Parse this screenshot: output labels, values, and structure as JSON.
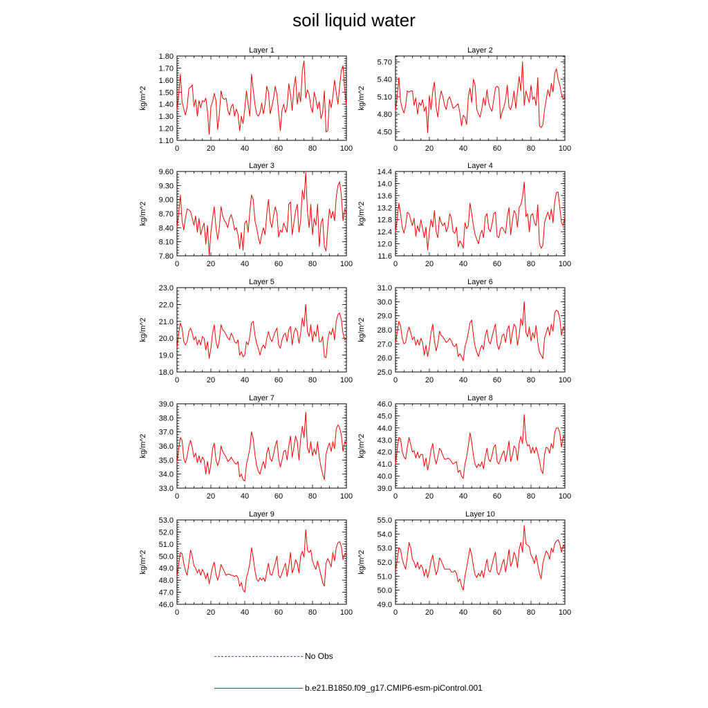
{
  "title": "soil liquid water",
  "legend": [
    {
      "label": "No Obs",
      "color": "#3a55c8",
      "dash": true
    },
    {
      "label": "b.e21.B1850.f09_g17.CMIP6-esm-piControl.001",
      "color": "#ff0000",
      "dash": false
    }
  ],
  "chart_data": [
    {
      "type": "line",
      "title": "Layer 1",
      "ylabel": "kg/m^2",
      "xlim": [
        0,
        100
      ],
      "ylim": [
        1.1,
        1.8
      ],
      "xticks": [
        "0",
        "20",
        "40",
        "60",
        "80",
        "100"
      ],
      "yticks": [
        "1.10",
        "1.20",
        "1.30",
        "1.40",
        "1.50",
        "1.60",
        "1.70",
        "1.80"
      ],
      "color": "#ff0000",
      "x_start": 0,
      "x_step": 1,
      "values": [
        1.35,
        1.48,
        1.65,
        1.42,
        1.36,
        1.31,
        1.38,
        1.53,
        1.54,
        1.56,
        1.38,
        1.44,
        1.3,
        1.43,
        1.37,
        1.43,
        1.42,
        1.45,
        1.34,
        1.15,
        1.38,
        1.42,
        1.49,
        1.43,
        1.19,
        1.32,
        1.51,
        1.45,
        1.44,
        1.45,
        1.35,
        1.31,
        1.38,
        1.4,
        1.3,
        1.36,
        1.32,
        1.18,
        1.3,
        1.24,
        1.36,
        1.51,
        1.4,
        1.3,
        1.65,
        1.52,
        1.4,
        1.32,
        1.3,
        1.33,
        1.41,
        1.32,
        1.4,
        1.55,
        1.5,
        1.32,
        1.38,
        1.45,
        1.55,
        1.48,
        1.33,
        1.18,
        1.35,
        1.4,
        1.33,
        1.38,
        1.57,
        1.48,
        1.35,
        1.54,
        1.63,
        1.4,
        1.5,
        1.42,
        1.68,
        1.76,
        1.45,
        1.52,
        1.48,
        1.38,
        1.33,
        1.5,
        1.44,
        1.36,
        1.42,
        1.28,
        1.33,
        1.51,
        1.17,
        1.18,
        1.44,
        1.37,
        1.46,
        1.6,
        1.5,
        1.4,
        1.55,
        1.68,
        1.72,
        1.52,
        1.39
      ]
    },
    {
      "type": "line",
      "title": "Layer 2",
      "ylabel": "kg/m^2",
      "xlim": [
        0,
        100
      ],
      "ylim": [
        4.35,
        5.8
      ],
      "xticks": [
        "0",
        "20",
        "40",
        "60",
        "80",
        "100"
      ],
      "yticks": [
        "4.50",
        "4.80",
        "5.10",
        "5.40",
        "5.70"
      ],
      "color": "#ff0000",
      "x_start": 0,
      "x_step": 1,
      "values": [
        4.85,
        5.1,
        5.43,
        5.02,
        4.9,
        4.82,
        4.95,
        5.2,
        5.18,
        5.2,
        5.2,
        4.95,
        5.08,
        4.8,
        5.0,
        4.95,
        5.05,
        4.85,
        4.93,
        4.48,
        5.12,
        4.88,
        5.2,
        5.35,
        4.92,
        4.75,
        5.05,
        5.2,
        5.1,
        4.95,
        4.88,
        5.05,
        5.1,
        5.0,
        4.9,
        4.92,
        4.95,
        4.98,
        4.82,
        4.6,
        4.78,
        4.75,
        4.62,
        5.1,
        5.25,
        5.0,
        5.4,
        5.3,
        4.88,
        4.8,
        4.75,
        4.9,
        5.08,
        4.95,
        5.22,
        5.0,
        4.9,
        4.85,
        5.05,
        5.25,
        5.28,
        5.25,
        4.72,
        4.85,
        4.92,
        5.05,
        5.3,
        4.92,
        4.88,
        5.0,
        5.2,
        4.9,
        5.18,
        5.45,
        5.2,
        5.7,
        4.95,
        5.2,
        5.1,
        5.0,
        5.3,
        5.05,
        5.1,
        4.95,
        5.43,
        4.6,
        4.57,
        4.62,
        4.88,
        5.05,
        5.22,
        5.1,
        5.33,
        5.18,
        5.5,
        5.58,
        5.4,
        5.3,
        5.15,
        5.05,
        5.1
      ]
    },
    {
      "type": "line",
      "title": "Layer 3",
      "ylabel": "kg/m^2",
      "xlim": [
        0,
        100
      ],
      "ylim": [
        7.8,
        9.6
      ],
      "xticks": [
        "0",
        "20",
        "40",
        "60",
        "80",
        "100"
      ],
      "yticks": [
        "7.80",
        "8.10",
        "8.40",
        "8.70",
        "9.00",
        "9.30",
        "9.60"
      ],
      "color": "#ff0000",
      "x_start": 0,
      "x_step": 1,
      "values": [
        8.4,
        8.7,
        9.1,
        8.55,
        8.35,
        8.6,
        8.8,
        8.78,
        8.75,
        8.6,
        8.45,
        8.65,
        8.3,
        8.6,
        8.25,
        8.4,
        8.5,
        8.05,
        8.45,
        7.8,
        8.3,
        8.6,
        8.85,
        8.4,
        8.15,
        8.4,
        8.85,
        8.65,
        8.55,
        8.5,
        8.4,
        8.6,
        8.68,
        8.55,
        8.35,
        8.4,
        8.25,
        7.95,
        8.3,
        7.92,
        8.5,
        8.55,
        8.3,
        8.75,
        9.1,
        9.0,
        8.55,
        8.4,
        8.2,
        8.05,
        8.25,
        8.4,
        8.25,
        8.7,
        9.0,
        8.55,
        8.4,
        8.65,
        8.85,
        8.7,
        8.2,
        8.35,
        8.3,
        8.5,
        8.4,
        8.3,
        8.9,
        8.95,
        8.25,
        8.5,
        8.75,
        8.9,
        8.3,
        8.55,
        9.2,
        9.0,
        9.58,
        8.75,
        8.4,
        8.9,
        8.25,
        8.6,
        8.45,
        8.9,
        8.0,
        8.5,
        8.6,
        8.0,
        7.9,
        8.4,
        8.8,
        8.6,
        8.75,
        8.55,
        9.05,
        9.3,
        9.38,
        9.1,
        8.55,
        8.8,
        8.7
      ]
    },
    {
      "type": "line",
      "title": "Layer 4",
      "ylabel": "kg/m^2",
      "xlim": [
        0,
        100
      ],
      "ylim": [
        11.6,
        14.4
      ],
      "xticks": [
        "0",
        "20",
        "40",
        "60",
        "80",
        "100"
      ],
      "yticks": [
        "11.6",
        "12.0",
        "12.4",
        "12.8",
        "13.2",
        "13.6",
        "14.0",
        "14.4"
      ],
      "color": "#ff0000",
      "x_start": 0,
      "x_step": 1,
      "values": [
        12.4,
        12.8,
        13.35,
        13.0,
        12.55,
        12.35,
        12.6,
        13.05,
        13.0,
        12.8,
        12.6,
        12.85,
        12.25,
        12.6,
        12.4,
        12.8,
        12.5,
        12.2,
        12.55,
        11.8,
        12.4,
        12.8,
        12.55,
        13.1,
        12.4,
        12.2,
        12.9,
        12.7,
        12.6,
        12.7,
        12.4,
        12.55,
        13.0,
        12.85,
        12.4,
        12.35,
        12.55,
        11.9,
        12.1,
        12.0,
        11.85,
        12.7,
        12.5,
        12.6,
        13.35,
        13.0,
        12.6,
        12.3,
        12.15,
        12.0,
        12.3,
        12.45,
        12.2,
        12.9,
        13.0,
        12.5,
        12.4,
        12.65,
        13.0,
        13.05,
        12.25,
        12.2,
        12.5,
        12.55,
        12.45,
        12.35,
        12.9,
        13.2,
        12.3,
        12.75,
        13.1,
        13.0,
        12.55,
        13.2,
        13.3,
        13.55,
        14.05,
        12.9,
        13.0,
        12.4,
        12.95,
        13.0,
        12.7,
        12.6,
        13.3,
        12.0,
        11.85,
        11.95,
        12.7,
        12.9,
        13.05,
        12.8,
        13.15,
        12.7,
        13.4,
        13.7,
        13.72,
        13.2,
        12.7,
        12.6,
        12.9
      ]
    },
    {
      "type": "line",
      "title": "Layer 5",
      "ylabel": "kg/m^2",
      "xlim": [
        0,
        100
      ],
      "ylim": [
        18.0,
        23.0
      ],
      "xticks": [
        "0",
        "20",
        "40",
        "60",
        "80",
        "100"
      ],
      "yticks": [
        "18.0",
        "19.0",
        "20.0",
        "21.0",
        "22.0",
        "23.0"
      ],
      "color": "#ff0000",
      "x_start": 0,
      "x_step": 1,
      "values": [
        19.4,
        20.3,
        20.9,
        20.6,
        19.8,
        19.6,
        19.8,
        20.4,
        20.6,
        20.3,
        19.9,
        20.1,
        19.6,
        19.9,
        19.6,
        20.1,
        20.0,
        19.3,
        19.8,
        18.8,
        19.4,
        20.3,
        20.8,
        19.8,
        19.4,
        19.9,
        20.8,
        20.5,
        20.4,
        20.2,
        20.0,
        19.9,
        20.3,
        20.1,
        19.8,
        19.7,
        19.9,
        19.0,
        19.2,
        18.9,
        19.0,
        19.8,
        19.6,
        20.1,
        20.9,
        21.0,
        20.2,
        19.7,
        19.4,
        19.0,
        19.4,
        19.6,
        19.4,
        20.0,
        20.4,
        20.0,
        19.8,
        20.1,
        20.4,
        20.6,
        19.6,
        19.4,
        19.9,
        20.2,
        20.3,
        19.8,
        20.5,
        20.7,
        19.6,
        20.3,
        20.6,
        20.4,
        19.7,
        20.3,
        21.2,
        20.7,
        22.0,
        20.4,
        20.1,
        20.8,
        19.8,
        20.4,
        20.1,
        20.8,
        19.8,
        19.8,
        20.1,
        18.9,
        18.85,
        19.9,
        20.4,
        20.2,
        20.6,
        19.9,
        21.0,
        21.4,
        21.5,
        21.1,
        20.3,
        19.9,
        20.0
      ]
    },
    {
      "type": "line",
      "title": "Layer 6",
      "ylabel": "kg/m^2",
      "xlim": [
        0,
        100
      ],
      "ylim": [
        25.0,
        31.0
      ],
      "xticks": [
        "0",
        "20",
        "40",
        "60",
        "80",
        "100"
      ],
      "yticks": [
        "25.0",
        "26.0",
        "27.0",
        "28.0",
        "29.0",
        "30.0",
        "31.0"
      ],
      "color": "#ff0000",
      "x_start": 0,
      "x_step": 1,
      "values": [
        27.0,
        27.8,
        28.6,
        28.3,
        27.4,
        27.0,
        27.1,
        27.8,
        28.2,
        27.8,
        27.3,
        27.5,
        26.9,
        27.3,
        26.9,
        27.4,
        27.1,
        26.2,
        26.9,
        26.1,
        26.8,
        27.8,
        28.4,
        27.2,
        26.5,
        27.0,
        27.9,
        27.6,
        27.5,
        27.3,
        27.1,
        27.2,
        27.4,
        27.2,
        26.9,
        26.8,
        27.0,
        26.1,
        26.3,
        26.1,
        25.8,
        26.8,
        27.2,
        27.8,
        28.5,
        28.7,
        27.6,
        26.8,
        26.4,
        26.1,
        26.6,
        26.9,
        26.6,
        27.6,
        28.0,
        27.2,
        27.0,
        27.5,
        28.0,
        28.4,
        27.0,
        26.6,
        27.0,
        27.6,
        27.7,
        27.1,
        28.0,
        28.3,
        27.0,
        27.8,
        28.4,
        28.2,
        26.9,
        27.6,
        28.8,
        28.3,
        30.0,
        27.8,
        27.5,
        28.2,
        27.2,
        27.8,
        27.4,
        28.3,
        27.1,
        26.4,
        26.2,
        25.95,
        27.4,
        27.8,
        28.2,
        27.6,
        28.4,
        27.9,
        29.2,
        29.4,
        29.3,
        28.8,
        27.6,
        28.2,
        28.0
      ]
    },
    {
      "type": "line",
      "title": "Layer 7",
      "ylabel": "kg/m^2",
      "xlim": [
        0,
        100
      ],
      "ylim": [
        33.0,
        39.0
      ],
      "xticks": [
        "0",
        "20",
        "40",
        "60",
        "80",
        "100"
      ],
      "yticks": [
        "33.0",
        "34.0",
        "35.0",
        "36.0",
        "37.0",
        "38.0",
        "39.0"
      ],
      "color": "#ff0000",
      "x_start": 0,
      "x_step": 1,
      "values": [
        34.8,
        35.8,
        36.6,
        36.4,
        35.1,
        34.8,
        35.3,
        36.0,
        36.4,
        35.9,
        35.2,
        35.5,
        34.8,
        35.3,
        34.8,
        35.2,
        35.0,
        34.0,
        34.9,
        34.0,
        34.7,
        35.8,
        36.2,
        35.0,
        34.6,
        35.0,
        36.0,
        35.6,
        35.4,
        35.2,
        34.9,
        35.0,
        35.2,
        35.0,
        34.8,
        34.7,
        34.9,
        33.8,
        34.0,
        33.6,
        33.5,
        34.7,
        35.2,
        35.8,
        37.0,
        36.5,
        35.4,
        34.6,
        34.2,
        34.0,
        34.5,
        34.9,
        34.4,
        35.5,
        35.9,
        35.1,
        34.9,
        35.4,
        36.0,
        36.4,
        35.1,
        34.5,
        35.0,
        35.6,
        35.7,
        35.0,
        36.0,
        36.7,
        35.2,
        35.9,
        36.7,
        36.3,
        35.0,
        36.5,
        37.4,
        36.6,
        38.4,
        35.9,
        35.5,
        36.3,
        35.3,
        35.8,
        35.4,
        36.3,
        35.2,
        34.5,
        34.0,
        33.6,
        35.4,
        35.9,
        36.2,
        35.6,
        36.3,
        35.8,
        37.2,
        37.5,
        37.3,
        36.8,
        35.6,
        36.3,
        36.2
      ]
    },
    {
      "type": "line",
      "title": "Layer 8",
      "ylabel": "kg/m^2",
      "xlim": [
        0,
        100
      ],
      "ylim": [
        39.0,
        46.0
      ],
      "xticks": [
        "0",
        "20",
        "40",
        "60",
        "80",
        "100"
      ],
      "yticks": [
        "39.0",
        "40.0",
        "41.0",
        "42.0",
        "43.0",
        "44.0",
        "45.0",
        "46.0"
      ],
      "color": "#ff0000",
      "x_start": 0,
      "x_step": 1,
      "values": [
        41.0,
        42.2,
        43.2,
        43.1,
        42.0,
        41.6,
        41.4,
        42.4,
        43.2,
        42.6,
        42.0,
        42.1,
        41.5,
        42.0,
        41.5,
        41.8,
        41.8,
        40.8,
        41.5,
        40.5,
        41.2,
        42.2,
        42.7,
        41.6,
        41.0,
        41.6,
        42.3,
        42.1,
        41.7,
        41.4,
        41.4,
        41.5,
        41.4,
        41.2,
        41.0,
        41.1,
        41.2,
        40.3,
        40.5,
        40.0,
        39.8,
        41.0,
        41.6,
        42.5,
        43.6,
        42.8,
        41.7,
        41.0,
        40.7,
        41.0,
        40.8,
        41.2,
        40.6,
        41.6,
        42.3,
        41.4,
        41.2,
        41.7,
        42.4,
        42.6,
        41.2,
        41.0,
        41.4,
        41.8,
        42.1,
        41.2,
        42.0,
        42.9,
        41.2,
        41.7,
        42.5,
        42.3,
        41.3,
        42.7,
        43.3,
        42.7,
        45.1,
        43.0,
        42.5,
        42.6,
        41.9,
        42.4,
        41.9,
        42.4,
        41.9,
        41.3,
        40.5,
        40.2,
        41.8,
        42.4,
        42.3,
        41.9,
        42.7,
        42.3,
        43.6,
        44.0,
        44.0,
        43.6,
        42.4,
        43.3,
        43.2
      ]
    },
    {
      "type": "line",
      "title": "Layer 9",
      "ylabel": "kg/m^2",
      "xlim": [
        0,
        100
      ],
      "ylim": [
        46.0,
        53.0
      ],
      "xticks": [
        "0",
        "20",
        "40",
        "60",
        "80",
        "100"
      ],
      "yticks": [
        "46.0",
        "47.0",
        "48.0",
        "49.0",
        "50.0",
        "51.0",
        "52.0",
        "53.0"
      ],
      "color": "#ff0000",
      "x_start": 0,
      "x_step": 1,
      "values": [
        48.3,
        49.3,
        50.3,
        50.2,
        49.4,
        48.8,
        48.4,
        49.4,
        50.5,
        50.0,
        49.2,
        49.0,
        48.6,
        48.9,
        48.4,
        48.9,
        48.6,
        48.1,
        48.6,
        47.7,
        48.4,
        49.1,
        49.5,
        48.5,
        48.0,
        48.5,
        49.3,
        49.0,
        48.7,
        48.4,
        48.5,
        48.5,
        48.4,
        48.4,
        48.3,
        48.4,
        48.2,
        47.5,
        47.8,
        47.2,
        47.0,
        48.2,
        48.7,
        49.4,
        50.7,
        49.9,
        48.8,
        48.1,
        47.9,
        48.2,
        48.0,
        48.2,
        47.9,
        48.7,
        49.4,
        48.5,
        48.4,
        48.9,
        49.4,
        50.0,
        48.4,
        48.2,
        48.6,
        49.0,
        49.4,
        48.3,
        49.2,
        50.3,
        48.6,
        49.0,
        49.7,
        49.4,
        48.6,
        50.0,
        50.4,
        49.9,
        52.2,
        50.5,
        50.3,
        50.5,
        49.6,
        49.2,
        48.9,
        49.6,
        49.0,
        48.4,
        47.8,
        47.5,
        49.4,
        49.8,
        49.5,
        49.1,
        50.3,
        49.6,
        50.7,
        51.1,
        51.2,
        50.8,
        49.7,
        50.2,
        50.1
      ]
    },
    {
      "type": "line",
      "title": "Layer 10",
      "ylabel": "kg/m^2",
      "xlim": [
        0,
        100
      ],
      "ylim": [
        49.0,
        55.0
      ],
      "xticks": [
        "0",
        "20",
        "40",
        "60",
        "80",
        "100"
      ],
      "yticks": [
        "49.0",
        "50.0",
        "51.0",
        "52.0",
        "53.0",
        "54.0",
        "55.0"
      ],
      "color": "#ff0000",
      "x_start": 0,
      "x_step": 1,
      "values": [
        51.4,
        52.1,
        53.0,
        52.9,
        52.2,
        51.8,
        51.5,
        52.4,
        53.4,
        53.0,
        52.2,
        52.0,
        51.6,
        52.0,
        51.5,
        51.8,
        51.6,
        51.0,
        51.5,
        50.9,
        51.4,
        52.1,
        52.5,
        51.7,
        51.1,
        51.5,
        52.3,
        52.1,
        51.8,
        51.5,
        51.5,
        51.5,
        51.5,
        51.3,
        51.3,
        51.4,
        51.2,
        50.6,
        50.8,
        50.3,
        50.0,
        51.0,
        51.6,
        52.3,
        53.0,
        52.5,
        51.7,
        51.1,
        50.9,
        51.2,
        51.0,
        51.4,
        50.9,
        51.6,
        52.2,
        51.4,
        51.3,
        51.8,
        52.3,
        52.7,
        51.3,
        51.1,
        51.4,
        51.9,
        52.2,
        51.3,
        52.0,
        52.9,
        51.7,
        52.0,
        52.7,
        52.4,
        51.6,
        52.9,
        53.4,
        52.7,
        54.6,
        53.3,
        53.2,
        53.1,
        52.5,
        52.3,
        51.9,
        52.5,
        51.8,
        51.2,
        50.8,
        51.9,
        52.4,
        52.8,
        52.6,
        52.2,
        53.0,
        52.7,
        53.3,
        53.5,
        53.6,
        53.3,
        52.7,
        53.2,
        53.0
      ]
    }
  ]
}
